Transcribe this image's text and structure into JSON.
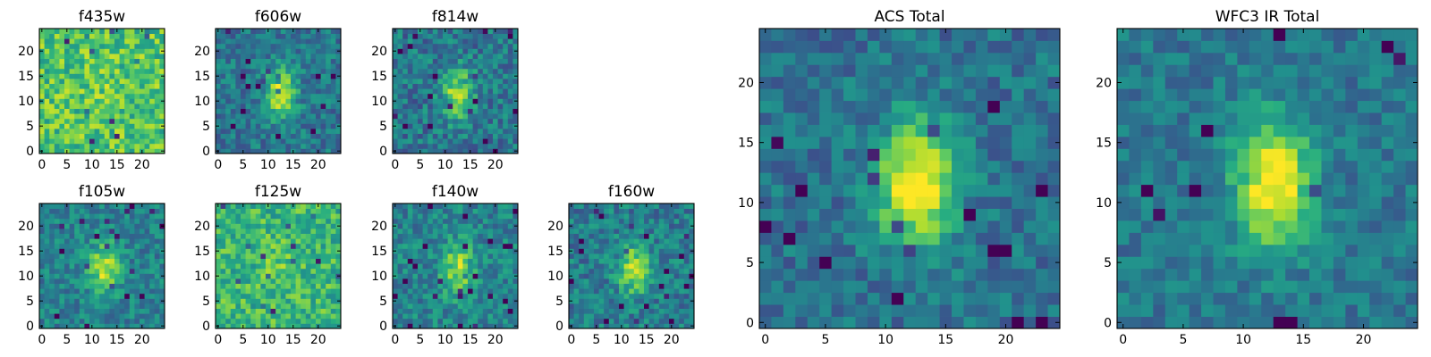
{
  "chart_data": [
    {
      "type": "heatmap",
      "title": "f435w",
      "xticks": [
        "0",
        "5",
        "10",
        "15",
        "20"
      ],
      "yticks": [
        "0",
        "5",
        "10",
        "15",
        "20"
      ],
      "grid": 25,
      "xlim": [
        0,
        25
      ],
      "ylim": [
        0,
        25
      ],
      "colormap": "viridis",
      "peak_center": [
        12.5,
        11.5
      ],
      "note_visual": "noisy, yellow-dominated"
    },
    {
      "type": "heatmap",
      "title": "f606w",
      "xticks": [
        "0",
        "5",
        "10",
        "15",
        "20"
      ],
      "yticks": [
        "0",
        "5",
        "10",
        "15",
        "20"
      ],
      "grid": 25,
      "xlim": [
        0,
        25
      ],
      "ylim": [
        0,
        25
      ],
      "colormap": "viridis",
      "peak_center": [
        12.5,
        11.5
      ]
    },
    {
      "type": "heatmap",
      "title": "f814w",
      "xticks": [
        "0",
        "5",
        "10",
        "15",
        "20"
      ],
      "yticks": [
        "0",
        "5",
        "10",
        "15",
        "20"
      ],
      "grid": 25,
      "xlim": [
        0,
        25
      ],
      "ylim": [
        0,
        25
      ],
      "colormap": "viridis",
      "peak_center": [
        12.5,
        11.5
      ]
    },
    {
      "type": "heatmap",
      "title": "f105w",
      "xticks": [
        "0",
        "5",
        "10",
        "15",
        "20"
      ],
      "yticks": [
        "0",
        "5",
        "10",
        "15",
        "20"
      ],
      "grid": 25,
      "xlim": [
        0,
        25
      ],
      "ylim": [
        0,
        25
      ],
      "colormap": "viridis",
      "peak_center": [
        12.5,
        11.5
      ]
    },
    {
      "type": "heatmap",
      "title": "f125w",
      "xticks": [
        "0",
        "5",
        "10",
        "15",
        "20"
      ],
      "yticks": [
        "0",
        "5",
        "10",
        "15",
        "20"
      ],
      "grid": 25,
      "xlim": [
        0,
        25
      ],
      "ylim": [
        0,
        25
      ],
      "colormap": "viridis",
      "peak_center": [
        12.5,
        11.5
      ]
    },
    {
      "type": "heatmap",
      "title": "f140w",
      "xticks": [
        "0",
        "5",
        "10",
        "15",
        "20"
      ],
      "yticks": [
        "0",
        "5",
        "10",
        "15",
        "20"
      ],
      "grid": 25,
      "xlim": [
        0,
        25
      ],
      "ylim": [
        0,
        25
      ],
      "colormap": "viridis",
      "peak_center": [
        12.5,
        11.5
      ]
    },
    {
      "type": "heatmap",
      "title": "f160w",
      "xticks": [
        "0",
        "5",
        "10",
        "15",
        "20"
      ],
      "yticks": [
        "0",
        "5",
        "10",
        "15",
        "20"
      ],
      "grid": 25,
      "xlim": [
        0,
        25
      ],
      "ylim": [
        0,
        25
      ],
      "colormap": "viridis",
      "peak_center": [
        12.5,
        11.5
      ]
    },
    {
      "type": "heatmap",
      "title": "ACS Total",
      "xticks": [
        "0",
        "5",
        "10",
        "15",
        "20"
      ],
      "yticks": [
        "0",
        "5",
        "10",
        "15",
        "20"
      ],
      "grid": 25,
      "xlim": [
        0,
        25
      ],
      "ylim": [
        0,
        25
      ],
      "colormap": "viridis",
      "peak_center": [
        12.5,
        11.5
      ]
    },
    {
      "type": "heatmap",
      "title": "WFC3 IR Total",
      "xticks": [
        "0",
        "5",
        "10",
        "15",
        "20"
      ],
      "yticks": [
        "0",
        "5",
        "10",
        "15",
        "20"
      ],
      "grid": 25,
      "xlim": [
        0,
        25
      ],
      "ylim": [
        0,
        25
      ],
      "colormap": "viridis",
      "peak_center": [
        12.5,
        11.5
      ]
    }
  ],
  "colors": {
    "viridis": [
      "#440154",
      "#472c7a",
      "#3b518b",
      "#2c718e",
      "#21908d",
      "#27ad81",
      "#5cc863",
      "#aadc32",
      "#fde725"
    ],
    "frame": "#000000",
    "background": "#ffffff"
  }
}
